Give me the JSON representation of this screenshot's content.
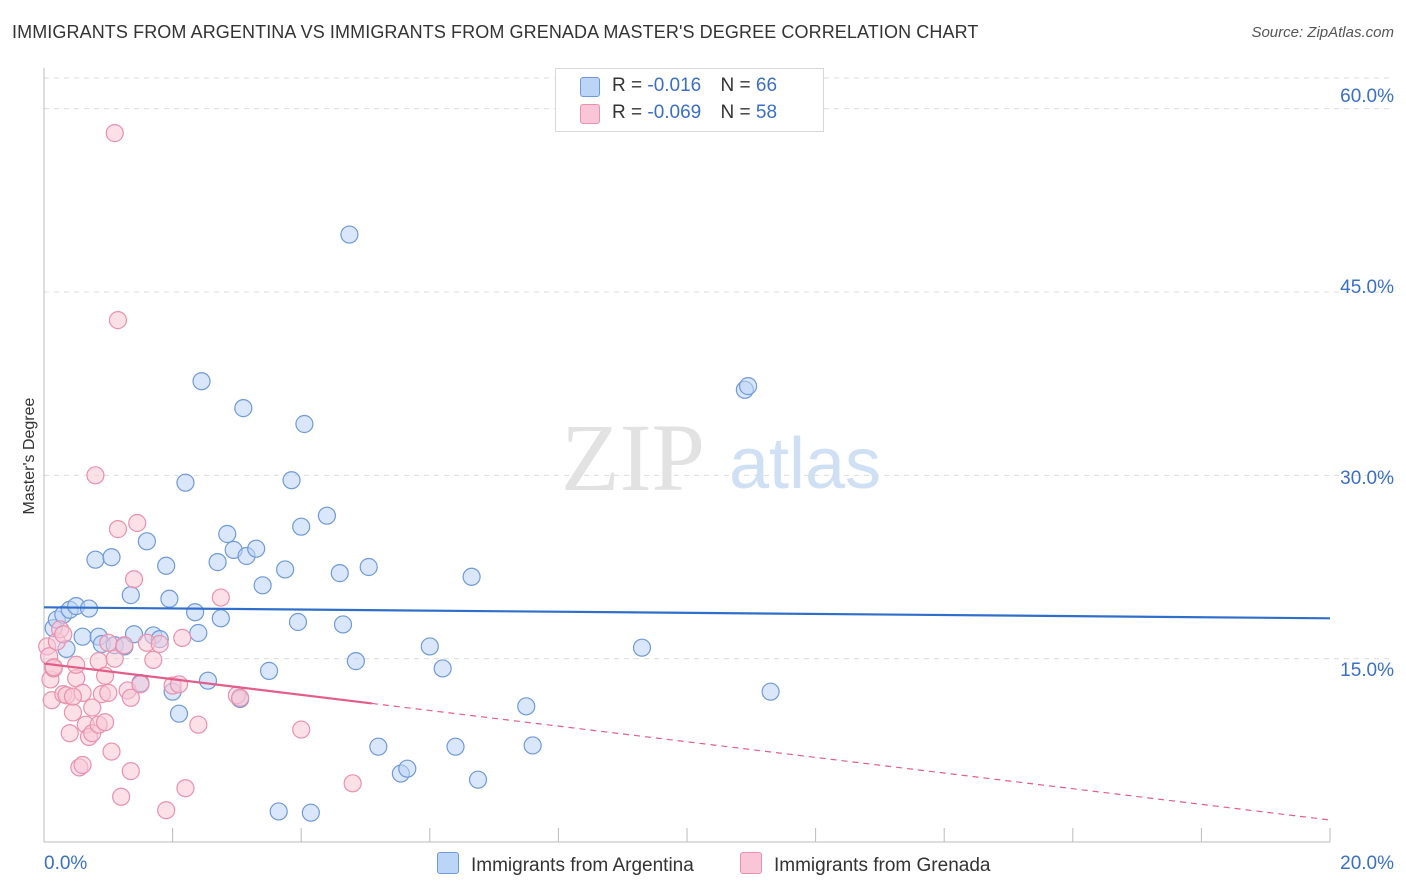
{
  "title": "IMMIGRANTS FROM ARGENTINA VS IMMIGRANTS FROM GRENADA MASTER'S DEGREE CORRELATION CHART",
  "source": "Source: ZipAtlas.com",
  "watermark": {
    "zip": "ZIP",
    "atlas": "atlas"
  },
  "legend": {
    "argentina": {
      "r_label": "R = ",
      "r_value": "-0.016",
      "n_label": "N = ",
      "n_value": "66"
    },
    "grenada": {
      "r_label": "R = ",
      "r_value": "-0.069",
      "n_label": "N = ",
      "n_value": "58"
    }
  },
  "colors": {
    "argentina_fill": "#bcd4f5",
    "argentina_stroke": "#6f9ad8",
    "argentina_line": "#2f6fcb",
    "grenada_fill": "#f8c6d6",
    "grenada_stroke": "#e991ae",
    "grenada_line": "#e35d8a",
    "tick_text": "#3a6fc7",
    "grid": "#dcdcdc"
  },
  "chart_data": {
    "type": "scatter",
    "title": "IMMIGRANTS FROM ARGENTINA VS IMMIGRANTS FROM GRENADA MASTER'S DEGREE CORRELATION CHART",
    "xlabel": "",
    "ylabel": "Master's Degree",
    "xlim": [
      0,
      20
    ],
    "ylim": [
      0,
      63
    ],
    "x_tick_labels": [
      "0.0%",
      "20.0%"
    ],
    "y_ticks": [
      15,
      30,
      45,
      60
    ],
    "y_tick_labels": [
      "15.0%",
      "30.0%",
      "45.0%",
      "60.0%"
    ],
    "grid": true,
    "series": [
      {
        "name": "Immigrants from Argentina",
        "r": -0.016,
        "n": 66,
        "trend": {
          "x0": 0,
          "y0": 19.2,
          "x1": 20,
          "y1": 18.3,
          "dashed_from_x": null
        },
        "points": [
          [
            0.15,
            17.5
          ],
          [
            0.2,
            18.2
          ],
          [
            0.3,
            18.6
          ],
          [
            0.4,
            19.0
          ],
          [
            0.5,
            19.3
          ],
          [
            0.7,
            19.1
          ],
          [
            0.6,
            16.8
          ],
          [
            0.85,
            16.8
          ],
          [
            0.9,
            16.2
          ],
          [
            1.1,
            16.1
          ],
          [
            1.25,
            16.0
          ],
          [
            1.4,
            17.0
          ],
          [
            1.7,
            16.9
          ],
          [
            1.8,
            16.6
          ],
          [
            0.8,
            23.1
          ],
          [
            1.05,
            23.3
          ],
          [
            1.35,
            20.2
          ],
          [
            1.6,
            24.6
          ],
          [
            1.9,
            22.6
          ],
          [
            1.95,
            19.9
          ],
          [
            2.0,
            12.3
          ],
          [
            2.1,
            10.5
          ],
          [
            2.2,
            29.4
          ],
          [
            2.35,
            18.8
          ],
          [
            2.4,
            17.1
          ],
          [
            2.45,
            37.7
          ],
          [
            2.55,
            13.2
          ],
          [
            2.7,
            22.9
          ],
          [
            2.75,
            18.3
          ],
          [
            2.85,
            25.2
          ],
          [
            2.95,
            23.9
          ],
          [
            3.05,
            11.7
          ],
          [
            3.1,
            35.5
          ],
          [
            3.15,
            23.4
          ],
          [
            3.3,
            24.0
          ],
          [
            3.4,
            21.0
          ],
          [
            3.5,
            14.0
          ],
          [
            3.65,
            2.5
          ],
          [
            3.75,
            22.3
          ],
          [
            3.85,
            29.6
          ],
          [
            3.95,
            18.0
          ],
          [
            4.0,
            25.8
          ],
          [
            4.05,
            34.2
          ],
          [
            4.15,
            2.4
          ],
          [
            4.4,
            26.7
          ],
          [
            4.6,
            22.0
          ],
          [
            4.65,
            17.8
          ],
          [
            4.75,
            49.7
          ],
          [
            4.85,
            14.8
          ],
          [
            5.05,
            22.5
          ],
          [
            5.2,
            7.8
          ],
          [
            5.55,
            5.6
          ],
          [
            5.65,
            6.0
          ],
          [
            6.0,
            16.0
          ],
          [
            6.2,
            14.2
          ],
          [
            6.4,
            7.8
          ],
          [
            6.65,
            21.7
          ],
          [
            6.75,
            5.1
          ],
          [
            7.5,
            11.1
          ],
          [
            7.6,
            7.9
          ],
          [
            9.3,
            15.9
          ],
          [
            10.9,
            37.0
          ],
          [
            10.95,
            37.3
          ],
          [
            11.3,
            12.3
          ],
          [
            1.5,
            13.0
          ],
          [
            0.35,
            15.8
          ]
        ]
      },
      {
        "name": "Immigrants from Grenada",
        "r": -0.069,
        "n": 58,
        "trend": {
          "x0": 0,
          "y0": 14.6,
          "x1": 20,
          "y1": 1.8,
          "dashed_from_x": 5.1
        },
        "points": [
          [
            0.05,
            16.0
          ],
          [
            0.08,
            15.2
          ],
          [
            0.1,
            13.3
          ],
          [
            0.12,
            11.6
          ],
          [
            0.15,
            14.2
          ],
          [
            0.2,
            16.4
          ],
          [
            0.25,
            17.4
          ],
          [
            0.3,
            12.1
          ],
          [
            0.35,
            12.0
          ],
          [
            0.4,
            8.9
          ],
          [
            0.45,
            10.6
          ],
          [
            0.5,
            13.4
          ],
          [
            0.5,
            14.5
          ],
          [
            0.55,
            6.1
          ],
          [
            0.6,
            6.3
          ],
          [
            0.6,
            12.2
          ],
          [
            0.65,
            9.6
          ],
          [
            0.7,
            8.6
          ],
          [
            0.75,
            8.9
          ],
          [
            0.75,
            11.0
          ],
          [
            0.8,
            30.0
          ],
          [
            0.85,
            14.8
          ],
          [
            0.85,
            9.6
          ],
          [
            0.9,
            12.1
          ],
          [
            0.95,
            13.6
          ],
          [
            0.95,
            9.8
          ],
          [
            1.0,
            12.2
          ],
          [
            1.0,
            16.3
          ],
          [
            1.05,
            7.4
          ],
          [
            1.1,
            15.0
          ],
          [
            1.15,
            25.6
          ],
          [
            1.2,
            3.7
          ],
          [
            1.25,
            16.1
          ],
          [
            1.3,
            12.4
          ],
          [
            1.35,
            5.8
          ],
          [
            1.35,
            11.8
          ],
          [
            1.4,
            21.5
          ],
          [
            1.45,
            26.1
          ],
          [
            1.5,
            12.9
          ],
          [
            1.6,
            16.3
          ],
          [
            1.7,
            14.9
          ],
          [
            1.8,
            16.2
          ],
          [
            1.9,
            2.6
          ],
          [
            2.0,
            12.8
          ],
          [
            2.1,
            12.9
          ],
          [
            2.15,
            16.7
          ],
          [
            2.2,
            4.4
          ],
          [
            2.4,
            9.6
          ],
          [
            2.75,
            20.0
          ],
          [
            3.0,
            12.0
          ],
          [
            3.05,
            11.8
          ],
          [
            4.0,
            9.2
          ],
          [
            4.8,
            4.8
          ],
          [
            1.1,
            58.0
          ],
          [
            1.15,
            42.7
          ],
          [
            0.45,
            11.9
          ],
          [
            0.3,
            17.0
          ],
          [
            0.15,
            14.3
          ]
        ]
      }
    ]
  },
  "bottom_legend": {
    "argentina": "Immigrants from Argentina",
    "grenada": "Immigrants from Grenada"
  }
}
